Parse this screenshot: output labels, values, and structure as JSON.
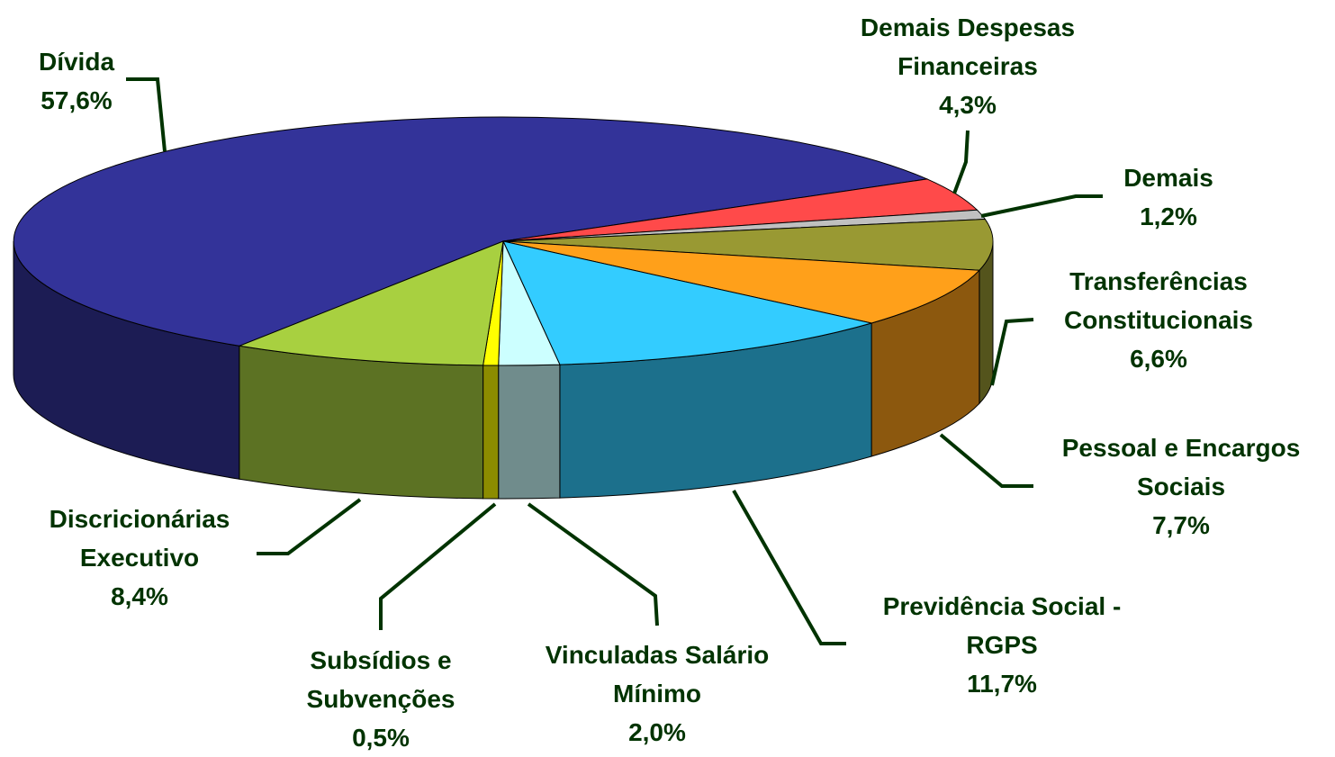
{
  "chart_data": {
    "type": "pie3d",
    "categories": [
      "Dívida",
      "Demais Despesas Financeiras",
      "Demais",
      "Transferências Constitucionais",
      "Pessoal e Encargos Sociais",
      "Previdência Social - RGPS",
      "Vinculadas Salário Mínimo",
      "Subsídios e Subvenções",
      "Discricionárias Executivo"
    ],
    "values": [
      57.6,
      4.3,
      1.2,
      6.6,
      7.7,
      11.7,
      2.0,
      0.5,
      8.4
    ],
    "value_labels": [
      "57,6%",
      "4,3%",
      "1,2%",
      "6,6%",
      "7,7%",
      "11,7%",
      "2,0%",
      "0,5%",
      "8,4%"
    ],
    "colors": [
      "#333399",
      "#ff4a4a",
      "#c0c0c0",
      "#999933",
      "#ffa01a",
      "#33ccff",
      "#ccffff",
      "#ffff00",
      "#a8d040"
    ]
  }
}
